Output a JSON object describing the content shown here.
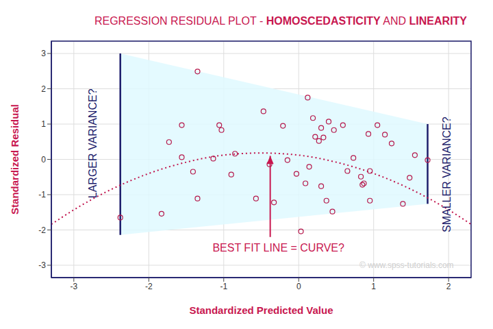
{
  "chart_data": {
    "type": "scatter",
    "title": "REGRESSION RESIDUAL PLOT - HOMOSCEDASTICITY AND LINEARITY",
    "title_bold": [
      "HOMOSCEDASTICITY",
      "LINEARITY"
    ],
    "x_label": "Standardized Predicted Value",
    "y_label": "Standardized Residual",
    "xlim": [
      -3.3,
      2.3
    ],
    "ylim": [
      -3.35,
      3.35
    ],
    "xticks": [
      -3,
      -2,
      -1,
      0,
      1,
      2
    ],
    "yticks": [
      -3,
      -2,
      -1,
      0,
      1,
      2,
      3
    ],
    "grid": true,
    "color": "#b5174b",
    "marker": "circle-open",
    "x": [
      -2.38,
      -1.83,
      -1.73,
      -1.56,
      -1.56,
      -1.41,
      -1.35,
      -1.35,
      -1.14,
      -1.06,
      -1.03,
      -0.9,
      -0.85,
      -0.57,
      -0.47,
      -0.39,
      -0.33,
      -0.21,
      -0.15,
      -0.03,
      0.03,
      0.09,
      0.12,
      0.14,
      0.19,
      0.22,
      0.27,
      0.3,
      0.33,
      0.3,
      0.37,
      0.4,
      0.45,
      0.47,
      0.59,
      0.65,
      0.73,
      0.83,
      0.85,
      0.87,
      0.93,
      0.95,
      0.95,
      1.05,
      1.15,
      1.24,
      1.39,
      1.48,
      1.55,
      1.72
    ],
    "values": [
      -1.65,
      -1.54,
      0.49,
      0.97,
      0.06,
      -0.35,
      2.49,
      -1.11,
      0.02,
      0.97,
      0.83,
      -0.43,
      0.16,
      -1.11,
      1.36,
      -0.14,
      -1.22,
      0.95,
      -0.02,
      -0.41,
      -2.04,
      -0.68,
      1.75,
      -0.21,
      1.17,
      0.64,
      0.52,
      0.89,
      0.62,
      -0.76,
      -1.17,
      1.07,
      -1.48,
      0.83,
      0.97,
      -0.33,
      0.04,
      -0.49,
      -0.72,
      -0.68,
      0.72,
      -0.33,
      -1.17,
      0.97,
      0.7,
      0.45,
      -1.26,
      -0.52,
      0.12,
      -0.02
    ],
    "curve": {
      "x": [
        -3.3,
        -3,
        -2.5,
        -2,
        -1.5,
        -1,
        -0.5,
        0,
        0.5,
        1,
        1.5,
        2,
        2.3
      ],
      "y": [
        -1.84,
        -1.43,
        -0.85,
        -0.4,
        -0.08,
        0.12,
        0.18,
        0.12,
        -0.08,
        -0.4,
        -0.85,
        -1.43,
        -1.84
      ],
      "color": "#c0134c",
      "line_style": "dotted"
    },
    "band": {
      "x": [
        -2.38,
        1.72
      ],
      "upper": [
        3.0,
        1.0
      ],
      "lower": [
        -2.14,
        -1.26
      ],
      "color": "#dff9ff"
    },
    "vertical_labels": [
      {
        "text": "LARGER VARIANCE?",
        "x": -2.75,
        "y": 0.45
      },
      {
        "text": "SMALLER VARIANCE?",
        "x": 1.98,
        "y": -0.43
      }
    ],
    "arrow_labels": [
      {
        "text": "BEST FIT LINE = CURVE?",
        "x": -0.27,
        "y": -2.5,
        "arrow_x": -0.38,
        "arrow_from": -2.2,
        "arrow_to": 0.1
      }
    ],
    "watermark": {
      "text": "© www.spss-tutorials.com",
      "x": 1.44,
      "y": -3.0
    }
  }
}
